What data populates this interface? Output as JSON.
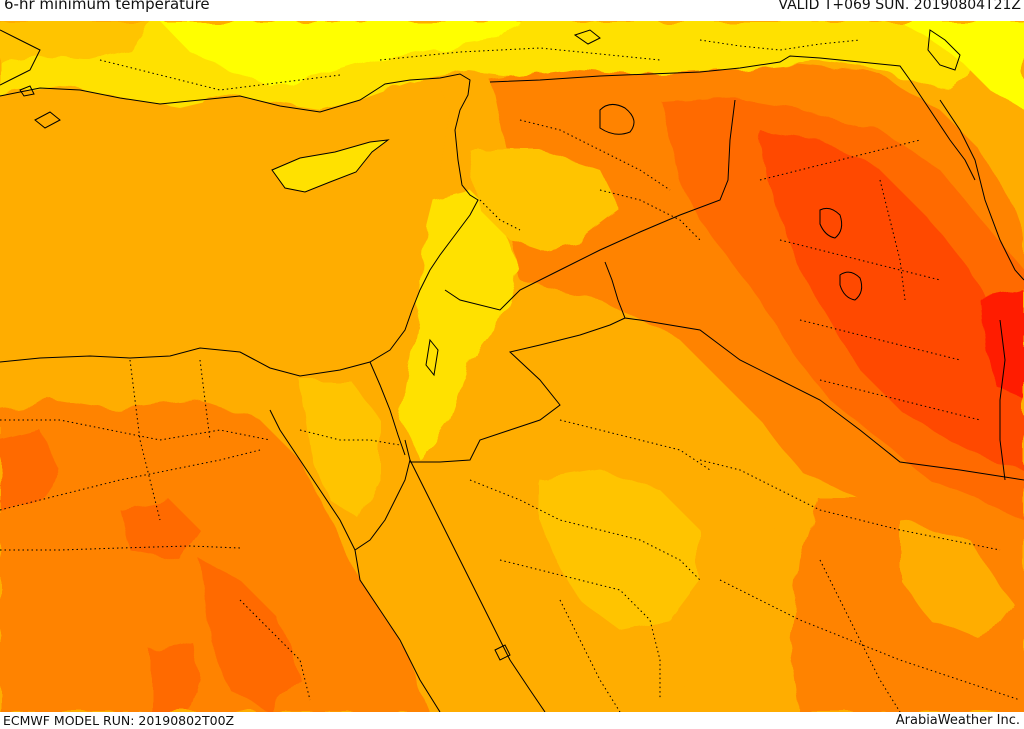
{
  "header": {
    "title": "6-hr minimum temperature",
    "valid": "VALID T+069 SUN. 20190804T21Z"
  },
  "footer": {
    "model_run": "ECMWF MODEL RUN: 20190802T00Z",
    "credit": "ArabiaWeather Inc."
  },
  "colors": {
    "light_yellow": "#ffff00",
    "yellow": "#ffe100",
    "gold": "#ffc400",
    "amber": "#ffad00",
    "orange": "#ff8300",
    "dark_orange": "#ff6a00",
    "red_orange": "#ff4a00",
    "red": "#ff1e00",
    "border": "#000000"
  }
}
